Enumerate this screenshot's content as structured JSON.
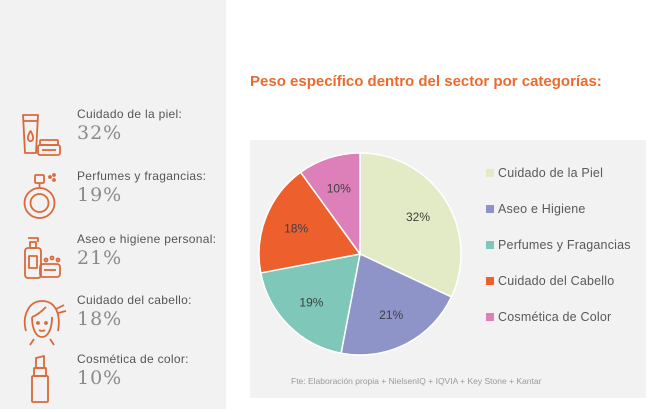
{
  "categories": [
    {
      "label": "Cuidado de la piel:",
      "value": "32%",
      "icon": "skincare-icon"
    },
    {
      "label": "Perfumes y fragancias:",
      "value": "19%",
      "icon": "perfume-icon"
    },
    {
      "label": "Aseo e higiene personal:",
      "value": "21%",
      "icon": "hygiene-icon"
    },
    {
      "label": "Cuidado del cabello:",
      "value": "18%",
      "icon": "haircare-icon"
    },
    {
      "label": "Cosmética de color:",
      "value": "10%",
      "icon": "lipstick-icon"
    }
  ],
  "colors": {
    "accent": "#ec6a2c",
    "icon_stroke": "#d9693a"
  },
  "chart_title": "Peso específico dentro del sector por categorías:",
  "source": "Fte: Elaboración propia + NielsenIQ + IQVIA + Key Stone + Kantar",
  "chart_data": {
    "type": "pie",
    "title": "Peso específico dentro del sector por categorías:",
    "legend_position": "right",
    "series": [
      {
        "name": "Cuidado de la Piel",
        "value": 32,
        "label": "32%",
        "color": "#e2eac6"
      },
      {
        "name": "Aseo e Higiene",
        "value": 21,
        "label": "21%",
        "color": "#8e94c7"
      },
      {
        "name": "Perfumes y Fragancias",
        "value": 19,
        "label": "19%",
        "color": "#7fc8b9"
      },
      {
        "name": "Cuidado del Cabello",
        "value": 18,
        "label": "18%",
        "color": "#ee5f2e"
      },
      {
        "name": "Cosmética de Color",
        "value": 10,
        "label": "10%",
        "color": "#dd7fb8"
      }
    ]
  }
}
